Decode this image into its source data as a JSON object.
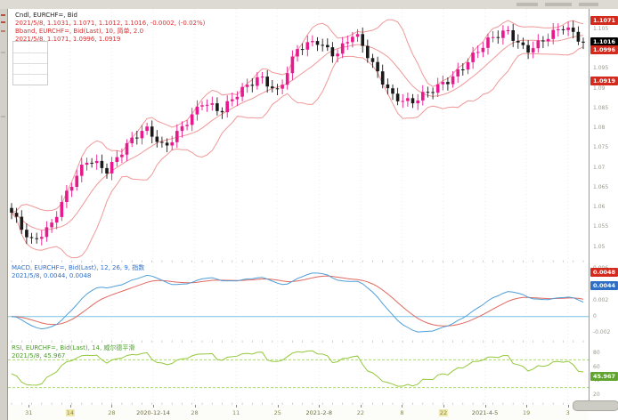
{
  "colors": {
    "up": "#e8188e",
    "down": "#1a1a1a",
    "bollinger": "#f09898",
    "macd_line": "#4f9fd8",
    "macd_signal": "#e06860",
    "macd_zero": "#79c4e8",
    "rsi_line": "#94c83d",
    "rsi_guide": "#aadc64",
    "badge_red": "#d42a1e",
    "badge_black": "#000000",
    "badge_blue": "#2f6fc4",
    "badge_green": "#62a430"
  },
  "legend": {
    "line1": "Cndl, EURCHF=, Bid",
    "line2": "2021/5/8, 1.1031, 1.1071, 1.1012, 1.1016, -0.0002, (-0.02%)",
    "line3": "Bband, EURCHF=, Bid(Last), 10, 简单, 2.0",
    "line4": "2021/5/8, 1.1071, 1.0996, 1.0919"
  },
  "macd_panel": {
    "label": "MACD, EURCHF=, Bid(Last), 12, 26, 9, 指数",
    "values": "2021/5/8, 0.0044, 0.0048",
    "badges": [
      {
        "value": "0.0048",
        "bg": "#d42a1e"
      },
      {
        "value": "0.0044",
        "bg": "#2f6fc4"
      }
    ],
    "axis_ticks": [
      "0.006",
      "0.004",
      "0.002",
      "0",
      "-0.002"
    ]
  },
  "rsi_panel": {
    "label": "RSI, EURCHF=, Bid(Last), 14, 威尔德平滑",
    "values": "2021/5/8, 45.967",
    "badge": {
      "value": "45.967",
      "bg": "#62a430"
    },
    "axis_ticks": [
      "80",
      "60",
      "40",
      "20"
    ]
  },
  "price_axis": {
    "ticks": [
      "1.105",
      "1.1",
      "1.095",
      "1.09",
      "1.085",
      "1.08",
      "1.075",
      "1.07",
      "1.065",
      "1.06",
      "1.055",
      "1.05"
    ],
    "badges": [
      {
        "value": "1.1071",
        "bg": "#d42a1e"
      },
      {
        "value": "1.1016",
        "bg": "#000000"
      },
      {
        "value": "1.0996",
        "bg": "#d42a1e"
      },
      {
        "value": "1.0919",
        "bg": "#d42a1e"
      }
    ]
  },
  "time_axis": {
    "ticks": [
      {
        "label": "31"
      },
      {
        "label": "14",
        "hl": true
      },
      {
        "label": "28"
      },
      {
        "label": "2020-12-14",
        "long": true
      },
      {
        "label": "28"
      },
      {
        "label": "11"
      },
      {
        "label": "25"
      },
      {
        "label": "2021-2-8",
        "long": true
      },
      {
        "label": "22"
      },
      {
        "label": "8"
      },
      {
        "label": "22",
        "hl": true
      },
      {
        "label": "2021-4-5",
        "long": true
      },
      {
        "label": "19"
      },
      {
        "label": "3"
      }
    ]
  },
  "chart_data": {
    "type": "candlestick",
    "symbol": "EURCHF=",
    "title": "Cndl, EURCHF=, Bid",
    "price_range": [
      1.046,
      1.11
    ],
    "candle_count": 115,
    "close_anchors": [
      1.058,
      1.051,
      1.0555,
      1.0645,
      1.0715,
      1.0695,
      1.076,
      1.0795,
      1.0745,
      1.081,
      1.0865,
      1.0835,
      1.0895,
      1.0935,
      1.0885,
      1.0995,
      1.1025,
      1.0985,
      1.1035,
      1.0955,
      1.0885,
      1.0862,
      1.0888,
      1.0925,
      1.0975,
      1.1015,
      1.1042,
      1.1,
      1.1025,
      1.105,
      1.1016
    ],
    "last": {
      "date": "2021/5/8",
      "open": 1.1031,
      "high": 1.1071,
      "low": 1.1012,
      "close": 1.1016,
      "change": -0.0002,
      "change_pct": "-0.02%"
    },
    "bollinger": {
      "period": 10,
      "ma_type": "简单",
      "stddev": 2.0,
      "upper": 1.1071,
      "middle": 1.0996,
      "lower": 1.0919
    },
    "macd": {
      "fast": 12,
      "slow": 26,
      "signal": 9,
      "method": "指数",
      "macd_value": 0.0044,
      "signal_value": 0.0048
    },
    "rsi": {
      "period": 14,
      "method": "威尔德平滑",
      "value": 45.967,
      "guides": [
        70,
        30
      ]
    }
  }
}
